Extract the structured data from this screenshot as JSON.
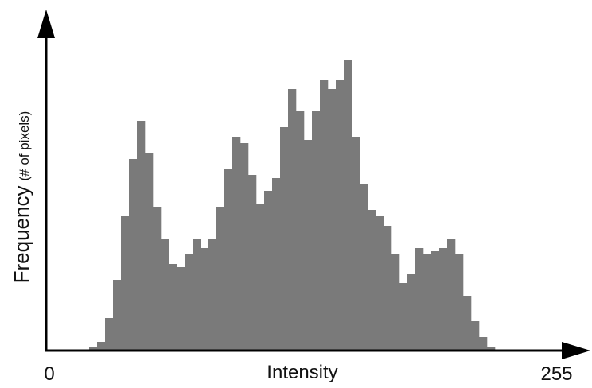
{
  "chart_data": {
    "type": "histogram",
    "x_label": "Intensity",
    "y_label": "Frequency",
    "y_label_unit": "(# of pixels)",
    "bins": [
      0,
      4,
      8,
      12,
      16,
      20,
      24,
      28,
      32,
      36,
      40,
      44,
      48,
      52,
      56,
      60,
      64,
      68,
      72,
      76,
      80,
      84,
      88,
      92,
      96,
      100,
      104,
      108,
      112,
      116,
      120,
      124,
      128,
      132,
      136,
      140,
      144,
      148,
      152,
      156,
      160,
      164,
      168,
      172,
      176,
      180,
      184,
      188,
      192,
      196,
      200,
      204,
      208,
      212,
      216,
      220,
      224,
      228,
      232,
      236,
      240,
      244,
      248,
      252,
      256
    ],
    "counts": [
      0,
      0,
      0,
      0,
      0,
      1,
      2.5,
      10,
      22,
      42,
      60,
      72,
      62,
      45,
      35,
      27,
      26,
      30,
      35,
      32,
      35,
      45,
      57,
      67,
      65,
      55,
      46,
      50,
      54,
      70,
      82,
      75,
      66,
      75,
      85,
      82,
      85,
      91,
      67,
      52,
      44,
      42,
      39,
      30,
      21,
      24,
      32,
      30,
      31,
      32,
      35,
      30,
      17,
      9,
      4,
      1,
      0,
      0,
      0,
      0,
      0,
      0,
      0,
      0
    ],
    "color": "#7a7a7a",
    "xlim": [
      0,
      256
    ],
    "xticks": [
      0,
      255
    ],
    "ylim": [
      0,
      100
    ]
  }
}
